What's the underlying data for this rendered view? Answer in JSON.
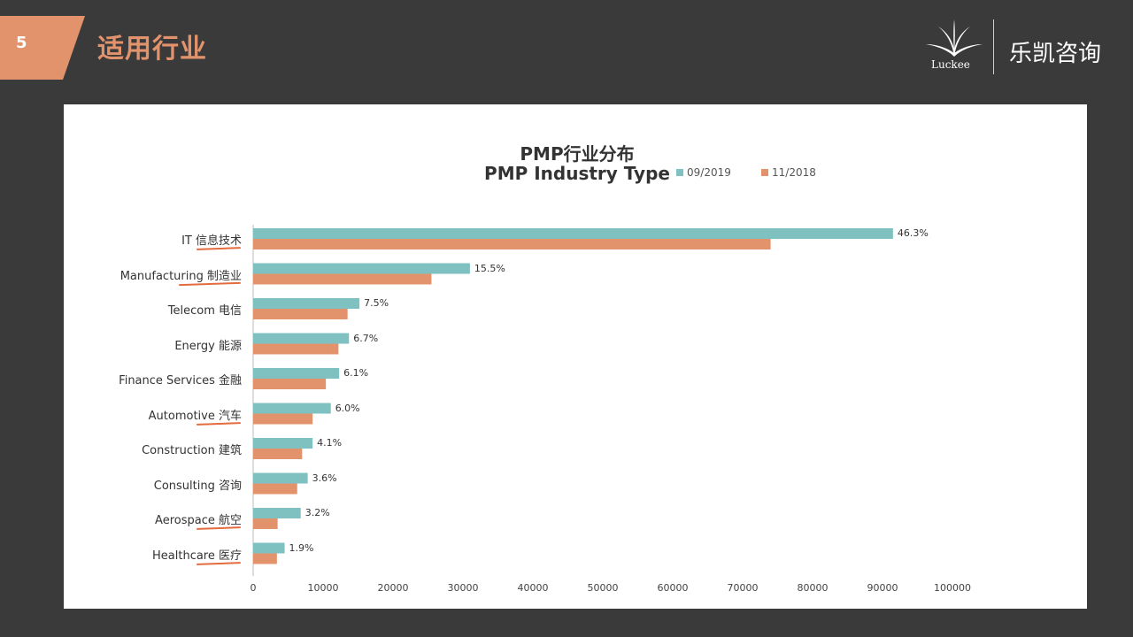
{
  "slide": {
    "page_number": "5",
    "title": "适用行业"
  },
  "logo": {
    "en": "Luckee",
    "cn": "乐凯咨询"
  },
  "colors": {
    "background": "#3a3a3a",
    "accent": "#e3936c",
    "series_2019": "#7fc1c1",
    "series_2018": "#e3936c"
  },
  "chart_data": {
    "type": "bar",
    "orientation": "horizontal",
    "title": "PMP行业分布",
    "subtitle": "PMP Industry Type",
    "categories": [
      "IT 信息技术",
      "Manufacturing 制造业",
      "Telecom 电信",
      "Energy 能源",
      "Finance Services 金融",
      "Automotive 汽车",
      "Construction 建筑",
      "Consulting 咨询",
      "Aerospace 航空",
      "Healthcare 医疗"
    ],
    "series": [
      {
        "name": "09/2019",
        "values": [
          91500,
          31000,
          15200,
          13700,
          12300,
          11100,
          8500,
          7800,
          6800,
          4500
        ],
        "labels": [
          "46.3%",
          "15.5%",
          "7.5%",
          "6.7%",
          "6.1%",
          "6.0%",
          "4.1%",
          "3.6%",
          "3.2%",
          "1.9%"
        ]
      },
      {
        "name": "11/2018",
        "values": [
          74000,
          25500,
          13500,
          12200,
          10400,
          8500,
          7000,
          6300,
          3500,
          3400
        ]
      }
    ],
    "xlim": [
      0,
      100000
    ],
    "xticks": [
      "0",
      "10000",
      "20000",
      "30000",
      "40000",
      "50000",
      "60000",
      "70000",
      "80000",
      "90000",
      "100000"
    ],
    "legend_position": "top-right",
    "grid": false
  }
}
